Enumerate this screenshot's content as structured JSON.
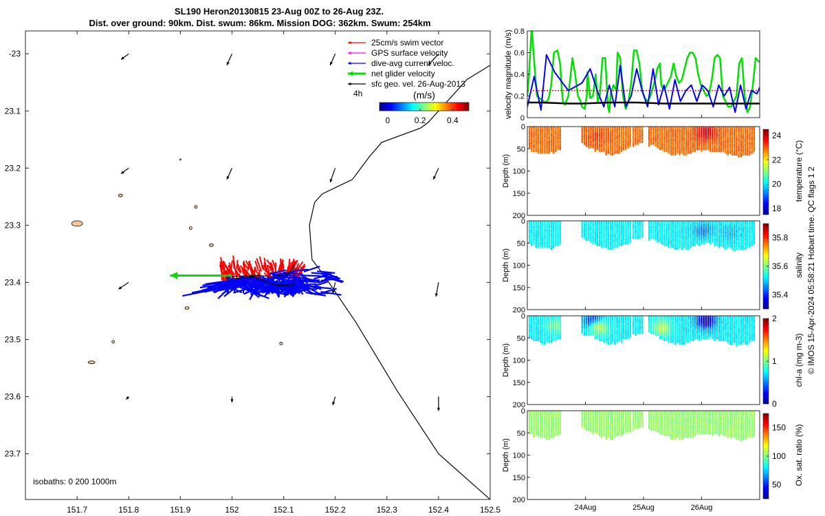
{
  "title": {
    "line1": "SL190 Heron20130815 23-Aug 00Z to 26-Aug 23Z.",
    "line2": "Dist. over ground: 90km. Dist. swum: 86km. Mission DOG: 362km. Swum: 254km"
  },
  "credit": "© IMOS 15-Apr-2024 05:58:21 Hobart time. QC flags 1  2",
  "map": {
    "xlim": [
      151.6,
      152.5
    ],
    "ylim": [
      -23.78,
      -22.96
    ],
    "xticks": [
      151.7,
      151.8,
      151.9,
      152,
      152.1,
      152.2,
      152.3,
      152.4,
      152.5
    ],
    "yticks": [
      -23.0,
      -23.1,
      -23.2,
      -23.3,
      -23.4,
      -23.5,
      -23.6,
      -23.7
    ],
    "ytick_labels": [
      "-23",
      "23.1",
      "23.2",
      "23.3",
      "23.4",
      "23.5",
      "23.6",
      "23.7"
    ],
    "legend": [
      {
        "label": "25cm/s swim vector",
        "color": "#ff0000"
      },
      {
        "label": "GPS surface velocity",
        "color": "#ff00ff"
      },
      {
        "label": "dive-avg current veloc.",
        "color": "#0000ff"
      },
      {
        "label": "net glider velocity",
        "color": "#00e000"
      },
      {
        "label": "sfc geo. vel. 26-Aug-2013",
        "color": "#000000"
      }
    ],
    "duration_label": "4h",
    "colorbar": {
      "unit": "(m/s)",
      "range": [
        -0.05,
        0.5
      ],
      "ticks": [
        0,
        0.2,
        0.4
      ],
      "tick_labels": [
        "0",
        "0.2",
        "0.4"
      ]
    },
    "isobath_label": "isobaths: 0   200  1000m",
    "coast": [
      [
        152.5,
        -23.78
      ],
      [
        152.4,
        -23.7
      ],
      [
        152.32,
        -23.59
      ],
      [
        152.24,
        -23.47
      ],
      [
        152.18,
        -23.39
      ],
      [
        152.155,
        -23.36
      ],
      [
        152.15,
        -23.3
      ],
      [
        152.16,
        -23.26
      ],
      [
        152.175,
        -23.245
      ],
      [
        152.233,
        -23.22
      ],
      [
        152.266,
        -23.18
      ],
      [
        152.29,
        -23.155
      ],
      [
        152.365,
        -23.13
      ],
      [
        152.38,
        -23.12
      ],
      [
        152.455,
        -23.045
      ],
      [
        152.5,
        -23.02
      ]
    ],
    "islands": [
      [
        151.7,
        -23.297,
        8,
        4
      ],
      [
        151.728,
        -23.54,
        5,
        2
      ],
      [
        151.784,
        -23.248,
        3,
        2
      ],
      [
        151.77,
        -23.504,
        2,
        2
      ],
      [
        151.913,
        -23.445,
        3,
        2
      ],
      [
        151.92,
        -23.305,
        2,
        2
      ],
      [
        151.93,
        -23.268,
        2,
        2
      ],
      [
        151.9,
        -23.185,
        1,
        1
      ],
      [
        151.96,
        -23.335,
        3,
        2
      ],
      [
        152.095,
        -23.507,
        2,
        2
      ]
    ],
    "geo_vectors": [
      [
        151.8,
        -23.0,
        -0.015,
        -0.01
      ],
      [
        152.0,
        -23.0,
        -0.01,
        -0.02
      ],
      [
        152.2,
        -23.0,
        -0.01,
        -0.02
      ],
      [
        152.4,
        -23.0,
        -0.02,
        -0.02
      ],
      [
        151.8,
        -23.2,
        -0.015,
        -0.01
      ],
      [
        152.0,
        -23.2,
        -0.01,
        -0.02
      ],
      [
        152.2,
        -23.2,
        -0.01,
        -0.025
      ],
      [
        152.4,
        -23.2,
        -0.01,
        -0.02
      ],
      [
        151.8,
        -23.4,
        -0.02,
        -0.012
      ],
      [
        152.0,
        -23.4,
        -0.01,
        -0.02
      ],
      [
        152.2,
        -23.4,
        -0.005,
        -0.02
      ],
      [
        152.4,
        -23.4,
        -0.005,
        -0.025
      ],
      [
        151.8,
        -23.6,
        -0.005,
        -0.005
      ],
      [
        152.0,
        -23.6,
        0.0,
        -0.01
      ],
      [
        152.2,
        -23.6,
        -0.005,
        -0.015
      ],
      [
        152.4,
        -23.6,
        0.0,
        -0.025
      ]
    ],
    "net_velocity_arrow": [
      152.0,
      -23.388,
      151.88,
      -23.388
    ],
    "glider_track": [
      [
        151.99,
        -23.39
      ],
      [
        152.05,
        -23.388
      ],
      [
        152.08,
        -23.39
      ],
      [
        152.11,
        -23.385
      ],
      [
        152.12,
        -23.37
      ],
      [
        152.12,
        -23.405
      ],
      [
        152.085,
        -23.405
      ],
      [
        152.04,
        -23.39
      ],
      [
        151.99,
        -23.395
      ]
    ]
  },
  "velocity_panel": {
    "ylabel": "velocity magnitude (m/s)",
    "ylim": [
      0,
      0.8
    ],
    "yticks": [
      0,
      0.2,
      0.4,
      0.6,
      0.8
    ],
    "ytick_labels": [
      "0",
      "0.2",
      "0.4",
      "0.6",
      "0.8"
    ],
    "series": [
      {
        "name": "net glider velocity",
        "color": "#00e000",
        "x": [
          0,
          0.1,
          0.3,
          0.35,
          0.45,
          0.7,
          1.3,
          1.5,
          1.6,
          1.75,
          1.8,
          1.95,
          2.2,
          2.4,
          2.5,
          2.6,
          2.75,
          3.0,
          3.3,
          3.5,
          3.7,
          3.9,
          4.0,
          4.2,
          4.35,
          4.4,
          4.6,
          4.8,
          5.0,
          5.15,
          5.3,
          5.5,
          5.7,
          5.9,
          6.0,
          6.1,
          6.3,
          6.5,
          6.6,
          6.8,
          7.0,
          7.2,
          7.4,
          7.6,
          7.8,
          8.0,
          8.2,
          8.4,
          8.6,
          8.8,
          9.0,
          9.2,
          9.4,
          9.5,
          9.7,
          9.8,
          10.0,
          10.2,
          10.5,
          10.7,
          10.9,
          11.1,
          11.3,
          11.5,
          11.7,
          11.9,
          12.1,
          12.3,
          12.5,
          12.7,
          12.9,
          13.1,
          13.3,
          13.5,
          13.7,
          13.9,
          14.1,
          14.3,
          14.5,
          14.7,
          14.9,
          15.1,
          15.3,
          15.5,
          15.7,
          15.9,
          16.1,
          16.3,
          16.5,
          16.7,
          16.9,
          17.0
        ],
        "y": [
          0.2,
          0.35,
          0.8,
          0.8,
          0.6,
          0.2,
          0.14,
          0.16,
          0.2,
          0.3,
          0.38,
          0.6,
          0.62,
          0.5,
          0.3,
          0.15,
          0.12,
          0.2,
          0.55,
          0.4,
          0.2,
          0.15,
          0.1,
          0.08,
          0.2,
          0.42,
          0.18,
          0.2,
          0.4,
          0.15,
          0.2,
          0.55,
          0.55,
          0.1,
          0.05,
          0.22,
          0.3,
          0.25,
          0.6,
          0.55,
          0.2,
          0.08,
          0.15,
          0.32,
          0.62,
          0.62,
          0.5,
          0.25,
          0.18,
          0.15,
          0.2,
          0.28,
          0.38,
          0.45,
          0.5,
          0.3,
          0.25,
          0.3,
          0.38,
          0.5,
          0.38,
          0.32,
          0.35,
          0.45,
          0.55,
          0.6,
          0.6,
          0.55,
          0.4,
          0.3,
          0.25,
          0.2,
          0.22,
          0.35,
          0.55,
          0.58,
          0.55,
          0.2,
          0.15,
          0.1,
          0.1,
          0.15,
          0.2,
          0.5,
          0.55,
          0.2,
          0.05,
          0.1,
          0.3,
          0.55,
          0.52,
          0.52
        ]
      },
      {
        "name": "dive-avg current veloc.",
        "color": "#0000ff",
        "x": [
          0,
          0.5,
          1.0,
          1.4,
          2.0,
          3.0,
          4.0,
          4.6,
          5.2,
          5.6,
          6.0,
          6.4,
          6.8,
          7.2,
          7.6,
          8.0,
          8.4,
          8.8,
          9.2,
          9.6,
          10.0,
          10.4,
          10.8,
          11.2,
          11.6,
          12.0,
          12.4,
          12.8,
          13.2,
          13.6,
          14.0,
          14.4,
          14.8,
          15.2,
          15.6,
          16.0,
          16.4,
          16.8,
          17.0
        ],
        "y": [
          0.1,
          0.38,
          0.07,
          0.58,
          0.42,
          0.25,
          0.32,
          0.45,
          0.22,
          0.1,
          0.3,
          0.1,
          0.48,
          0.1,
          0.2,
          0.45,
          0.25,
          0.1,
          0.45,
          0.12,
          0.3,
          0.08,
          0.35,
          0.15,
          0.25,
          0.3,
          0.15,
          0.3,
          0.25,
          0.1,
          0.3,
          0.2,
          0.28,
          0.05,
          0.3,
          0.08,
          0.25,
          0.22,
          0.28
        ]
      },
      {
        "name": "25cm/s swim vector",
        "color": "#ff0000",
        "x": [
          0,
          17.0
        ],
        "y": [
          0.25,
          0.25
        ]
      },
      {
        "name": "sfc geo. vel.",
        "color": "#000000",
        "x": [
          0,
          1,
          2,
          3,
          4,
          5,
          6,
          7,
          8,
          9,
          10,
          11,
          12,
          13,
          14,
          15,
          16,
          17
        ],
        "y": [
          0.14,
          0.14,
          0.135,
          0.13,
          0.13,
          0.135,
          0.14,
          0.14,
          0.14,
          0.135,
          0.13,
          0.13,
          0.13,
          0.13,
          0.13,
          0.13,
          0.13,
          0.13
        ]
      }
    ]
  },
  "time_axis": {
    "xlim_days": [
      0,
      17
    ],
    "ticks": [
      {
        "day": 4.25,
        "label": "24Aug"
      },
      {
        "day": 8.5,
        "label": "25Aug"
      },
      {
        "day": 12.75,
        "label": "26Aug"
      }
    ],
    "data_segments": [
      [
        0.1,
        2.35
      ],
      [
        3.95,
        7.5
      ],
      [
        7.7,
        8.5
      ],
      [
        8.85,
        16.6
      ]
    ]
  },
  "depth_panels": [
    {
      "name": "temperature",
      "ylabel": "Depth (m)",
      "cbar_label": "temperature (°C)",
      "cbar_range": [
        17.5,
        24.5
      ],
      "cbar_ticks": [
        18,
        20,
        22,
        24
      ],
      "cbar_tick_labels": [
        "18",
        "20",
        "22",
        "24"
      ],
      "base_value": 22.9,
      "blobs": [
        {
          "x": 13.0,
          "depth": 10,
          "value": 23.9
        },
        {
          "x": 5.0,
          "depth": 20,
          "value": 23.2
        }
      ],
      "depth_ticks": [
        0,
        50,
        100,
        150,
        200
      ],
      "depth_tick_labels": [
        "0",
        "50",
        "100",
        "150",
        "200"
      ]
    },
    {
      "name": "salinity",
      "ylabel": "Depth (m)",
      "cbar_label": "salinity",
      "cbar_range": [
        35.3,
        35.9
      ],
      "cbar_ticks": [
        35.4,
        35.6,
        35.8
      ],
      "cbar_tick_labels": [
        "35.4",
        "35.6",
        "35.8"
      ],
      "base_value": 35.52,
      "blobs": [
        {
          "x": 12.8,
          "depth": 20,
          "value": 35.45
        },
        {
          "x": 14.8,
          "depth": 25,
          "value": 35.48
        }
      ],
      "depth_ticks": [
        0,
        50,
        100,
        150,
        200
      ],
      "depth_tick_labels": [
        "0",
        "50",
        "100",
        "150",
        "200"
      ]
    },
    {
      "name": "chl-a",
      "ylabel": "Depth (m)",
      "cbar_label": "chl-a (mg m-3)",
      "cbar_range": [
        0,
        2
      ],
      "cbar_ticks": [
        0,
        1,
        2
      ],
      "cbar_tick_labels": [
        "0",
        "1",
        "2"
      ],
      "base_value": 0.72,
      "blobs": [
        {
          "x": 13.0,
          "depth": 8,
          "value": 0.05
        },
        {
          "x": 4.8,
          "depth": 10,
          "value": 0.2
        },
        {
          "x": 5.2,
          "depth": 25,
          "value": 1.1
        },
        {
          "x": 9.8,
          "depth": 25,
          "value": 1.1
        },
        {
          "x": 2.0,
          "depth": 20,
          "value": 0.95
        }
      ],
      "depth_ticks": [
        0,
        50,
        100,
        150,
        200
      ],
      "depth_tick_labels": [
        "0",
        "50",
        "100",
        "150",
        "200"
      ]
    },
    {
      "name": "oxygen",
      "ylabel": "Depth (m)",
      "cbar_label": "Ox. sat. ratio (%)",
      "cbar_range": [
        25,
        175
      ],
      "cbar_ticks": [
        50,
        100,
        150
      ],
      "cbar_tick_labels": [
        "50",
        "100",
        "150"
      ],
      "base_value": 103,
      "blobs": [],
      "depth_ticks": [
        0,
        50,
        100,
        150,
        200
      ],
      "depth_tick_labels": [
        "0",
        "50",
        "100",
        "150",
        "200"
      ]
    }
  ]
}
